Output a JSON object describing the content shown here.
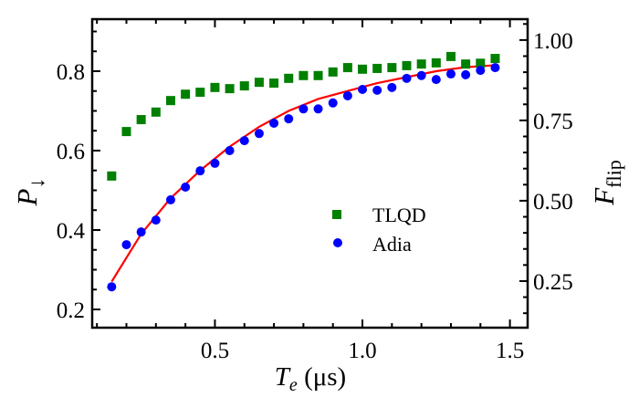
{
  "chart_data": {
    "type": "scatter",
    "xlabel": "T_e (μs)",
    "xlabel_main": "T",
    "xlabel_sub": "e",
    "xlabel_unit": " (μs)",
    "ylabel_main": "P",
    "ylabel_sub": "↓",
    "y2label_main": "F",
    "y2label_sub": "flip",
    "xlim": [
      0.084,
      1.56
    ],
    "ylim": [
      0.154,
      0.931
    ],
    "y2lim": [
      0.105,
      1.065
    ],
    "xticks": [
      0.5,
      1.0,
      1.5
    ],
    "xtick_labels": [
      "0.5",
      "1.0",
      "1.5"
    ],
    "yticks": [
      0.2,
      0.4,
      0.6,
      0.8
    ],
    "ytick_labels": [
      "0.2",
      "0.4",
      "0.6",
      "0.8"
    ],
    "y2ticks": [
      0.25,
      0.5,
      0.75,
      1.0
    ],
    "y2tick_labels": [
      "0.25",
      "0.50",
      "0.75",
      "1.00"
    ],
    "grid": false,
    "legend_position": "center-right",
    "x": [
      0.15,
      0.2,
      0.25,
      0.3,
      0.35,
      0.4,
      0.45,
      0.5,
      0.55,
      0.6,
      0.65,
      0.7,
      0.75,
      0.8,
      0.85,
      0.9,
      0.95,
      1.0,
      1.05,
      1.1,
      1.15,
      1.2,
      1.25,
      1.3,
      1.35,
      1.4,
      1.45
    ],
    "series": [
      {
        "name": "TLQD",
        "marker": "square",
        "color": "#008000",
        "values": [
          0.536,
          0.648,
          0.678,
          0.697,
          0.726,
          0.742,
          0.747,
          0.759,
          0.756,
          0.763,
          0.772,
          0.77,
          0.782,
          0.789,
          0.789,
          0.798,
          0.809,
          0.805,
          0.807,
          0.809,
          0.814,
          0.818,
          0.821,
          0.837,
          0.818,
          0.82,
          0.832
        ]
      },
      {
        "name": "Adia",
        "marker": "circle",
        "color": "#0000ff",
        "values": [
          0.257,
          0.363,
          0.395,
          0.425,
          0.476,
          0.508,
          0.549,
          0.568,
          0.6,
          0.625,
          0.643,
          0.669,
          0.68,
          0.705,
          0.705,
          0.72,
          0.738,
          0.754,
          0.752,
          0.759,
          0.782,
          0.789,
          0.779,
          0.793,
          0.791,
          0.802,
          0.809
        ]
      },
      {
        "marker": "line",
        "color": "#ff0000",
        "x": [
          0.15,
          0.25,
          0.35,
          0.45,
          0.55,
          0.65,
          0.75,
          0.85,
          0.95,
          1.05,
          1.15,
          1.25,
          1.35,
          1.45
        ],
        "values": [
          0.27,
          0.39,
          0.48,
          0.55,
          0.61,
          0.66,
          0.7,
          0.73,
          0.75,
          0.77,
          0.785,
          0.8,
          0.81,
          0.815
        ]
      }
    ]
  }
}
